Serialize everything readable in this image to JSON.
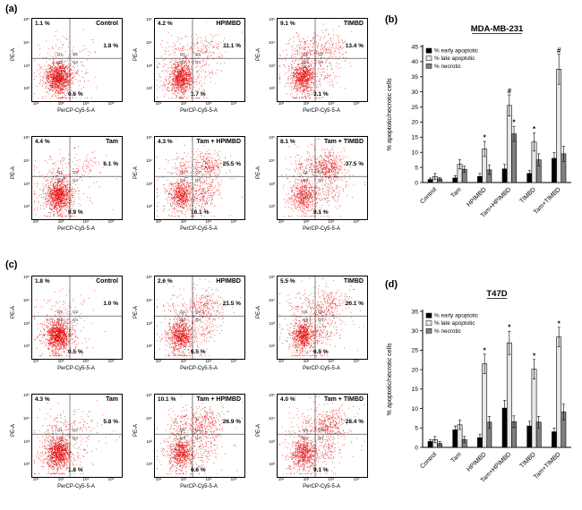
{
  "figure": {
    "panel_a_label": "(a)",
    "panel_b_label": "(b)",
    "panel_c_label": "(c)",
    "panel_d_label": "(d)"
  },
  "flow_common": {
    "x_axis_label": "PerCP-Cy5-5-A",
    "y_axis_label": "PE-A",
    "tick_labels": [
      "10²",
      "10³",
      "10⁴",
      "10⁵"
    ],
    "quadrant_labels": [
      "Q1",
      "Q2",
      "Q3",
      "Q4"
    ]
  },
  "flow_panels": {
    "a": [
      {
        "title": "Control",
        "q1": "1.1 %",
        "q2": "1.8 %",
        "q4": "0.6 %"
      },
      {
        "title": "HPIMBD",
        "q1": "4.2 %",
        "q2": "11.1 %",
        "q4": "1.7 %"
      },
      {
        "title": "TIMBD",
        "q1": "9.1 %",
        "q2": "13.4 %",
        "q4": "3.1 %"
      },
      {
        "title": "Tam",
        "q1": "4.4 %",
        "q2": "6.1 %",
        "q4": "0.9 %"
      },
      {
        "title": "Tam + HPIMBD",
        "q1": "4.3 %",
        "q2": "25.5 %",
        "q4": "16.1 %"
      },
      {
        "title": "Tam + TIMBD",
        "q1": "8.1 %",
        "q2": "37.5 %",
        "q4": "9.1 %"
      }
    ],
    "c": [
      {
        "title": "Control",
        "q1": "1.8 %",
        "q2": "1.0 %",
        "q4": "0.5 %"
      },
      {
        "title": "HPIMBD",
        "q1": "2.6 %",
        "q2": "21.5 %",
        "q4": "6.5 %"
      },
      {
        "title": "TIMBD",
        "q1": "5.5 %",
        "q2": "20.1 %",
        "q4": "6.5 %"
      },
      {
        "title": "Tam",
        "q1": "4.3 %",
        "q2": "5.8 %",
        "q4": "1.8 %"
      },
      {
        "title": "Tam + HPIMBD",
        "q1": "10.1 %",
        "q2": "26.9 %",
        "q4": "6.6 %"
      },
      {
        "title": "Tam + TIMBD",
        "q1": "4.0 %",
        "q2": "28.4 %",
        "q4": "9.1 %"
      }
    ]
  },
  "chart_data": [
    {
      "id": "b",
      "type": "bar",
      "title": "MDA-MB-231",
      "ylabel": "% apoptotic/necrotic cells",
      "ylim": [
        0,
        45
      ],
      "ytick_step": 5,
      "grid": false,
      "legend_position": "top-left-inside",
      "categories": [
        "Control",
        "Tam",
        "HPIMBD",
        "Tam+HPIMBD",
        "TIMBD",
        "Tam+TIMBD"
      ],
      "series": [
        {
          "name": "% early apoptotic",
          "color": "#000000",
          "values": [
            1.0,
            1.5,
            2.0,
            4.5,
            3.0,
            8.0
          ],
          "errors": [
            0.5,
            0.8,
            1.0,
            1.5,
            1.0,
            2.0
          ],
          "markers": [
            "",
            "",
            "",
            "",
            "",
            ""
          ]
        },
        {
          "name": "% late apoptotic",
          "color": "#e8e8e8",
          "values": [
            2.0,
            6.0,
            11.1,
            25.5,
            13.4,
            37.5
          ],
          "errors": [
            1.0,
            1.5,
            2.5,
            3.5,
            3.0,
            5.0
          ],
          "markers": [
            "",
            "",
            "*",
            "#",
            "*",
            "#"
          ]
        },
        {
          "name": "% necrotic",
          "color": "#808080",
          "values": [
            1.2,
            4.4,
            4.2,
            16.1,
            7.5,
            9.5
          ],
          "errors": [
            0.5,
            1.0,
            1.5,
            2.5,
            2.0,
            2.5
          ],
          "markers": [
            "",
            "",
            "",
            "*",
            "",
            ""
          ]
        }
      ]
    },
    {
      "id": "d",
      "type": "bar",
      "title": "T47D",
      "ylabel": "% apoptotic/necrotic cells",
      "ylim": [
        0,
        35
      ],
      "ytick_step": 5,
      "grid": false,
      "legend_position": "top-left-inside",
      "categories": [
        "Control",
        "Tam",
        "HPIMBD",
        "Tam+HPIMBD",
        "TIMBD",
        "Tam+TIMBD"
      ],
      "series": [
        {
          "name": "% early apoptotic",
          "color": "#000000",
          "values": [
            1.5,
            4.5,
            2.5,
            10.1,
            5.5,
            4.0
          ],
          "errors": [
            0.5,
            1.0,
            0.8,
            2.0,
            1.2,
            1.0
          ],
          "markers": [
            "",
            "",
            "",
            "",
            "",
            ""
          ]
        },
        {
          "name": "% late apoptotic",
          "color": "#e8e8e8",
          "values": [
            2.0,
            5.8,
            21.5,
            26.9,
            20.1,
            28.4
          ],
          "errors": [
            0.8,
            1.2,
            2.5,
            3.0,
            2.5,
            2.5
          ],
          "markers": [
            "",
            "",
            "*",
            "*",
            "*",
            "*"
          ]
        },
        {
          "name": "% necrotic",
          "color": "#808080",
          "values": [
            1.0,
            2.0,
            6.5,
            6.6,
            6.5,
            9.1
          ],
          "errors": [
            0.5,
            0.8,
            1.5,
            1.5,
            1.5,
            2.0
          ],
          "markers": [
            "",
            "",
            "",
            "",
            "",
            ""
          ]
        }
      ]
    }
  ],
  "colors": {
    "dots": "#dd0000",
    "early_apoptotic": "#000000",
    "late_apoptotic": "#e8e8e8",
    "necrotic": "#808080"
  }
}
